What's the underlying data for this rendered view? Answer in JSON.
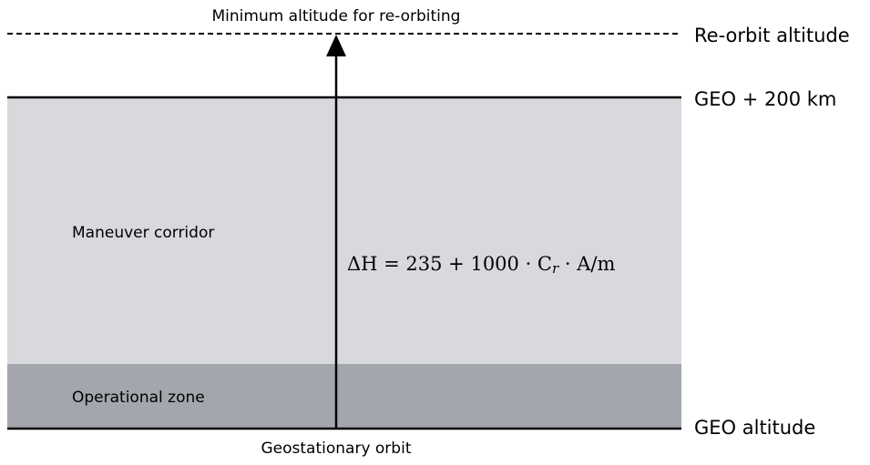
{
  "diagram": {
    "top_label": "Minimum altitude for re-orbiting",
    "bottom_label": "Geostationary orbit",
    "levels": [
      "Re-orbit altitude",
      "GEO + 200 km",
      "GEO altitude"
    ],
    "zones": [
      "Maneuver corridor",
      "Operational zone"
    ],
    "formula": {
      "main": "ΔH = 235 + 1000 · C",
      "subscript": "r",
      "rest": " · A/m"
    }
  }
}
